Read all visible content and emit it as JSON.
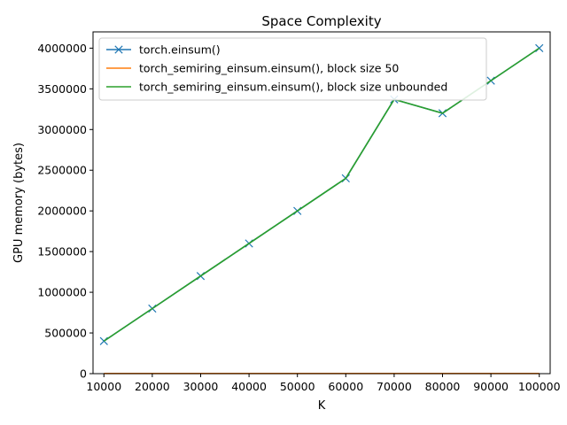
{
  "chart_data": {
    "type": "line",
    "title": "Space Complexity",
    "xlabel": "K",
    "ylabel": "GPU memory (bytes)",
    "xlim": [
      7750,
      102250
    ],
    "ylim": [
      0,
      4200000
    ],
    "x_ticks": [
      10000,
      20000,
      30000,
      40000,
      50000,
      60000,
      70000,
      80000,
      90000,
      100000
    ],
    "y_ticks": [
      0,
      500000,
      1000000,
      1500000,
      2000000,
      2500000,
      3000000,
      3500000,
      4000000
    ],
    "x": [
      10000,
      20000,
      30000,
      40000,
      50000,
      60000,
      70000,
      80000,
      90000,
      100000
    ],
    "legend_position": "top-left",
    "grid": false,
    "series": [
      {
        "name": "torch.einsum()",
        "color": "#1f77b4",
        "marker": "x",
        "values": [
          400000,
          800000,
          1200000,
          1600000,
          2000000,
          2400000,
          3370000,
          3200000,
          3600000,
          4000000
        ]
      },
      {
        "name": "torch_semiring_einsum.einsum(), block size 50",
        "color": "#ff7f0e",
        "marker": "none",
        "values": [
          2000,
          2000,
          2000,
          2000,
          2000,
          2000,
          2000,
          2000,
          2000,
          2000
        ]
      },
      {
        "name": "torch_semiring_einsum.einsum(), block size unbounded",
        "color": "#2ca02c",
        "marker": "none",
        "values": [
          400000,
          800000,
          1200000,
          1600000,
          2000000,
          2400000,
          3370000,
          3200000,
          3600000,
          4000000
        ]
      }
    ]
  }
}
